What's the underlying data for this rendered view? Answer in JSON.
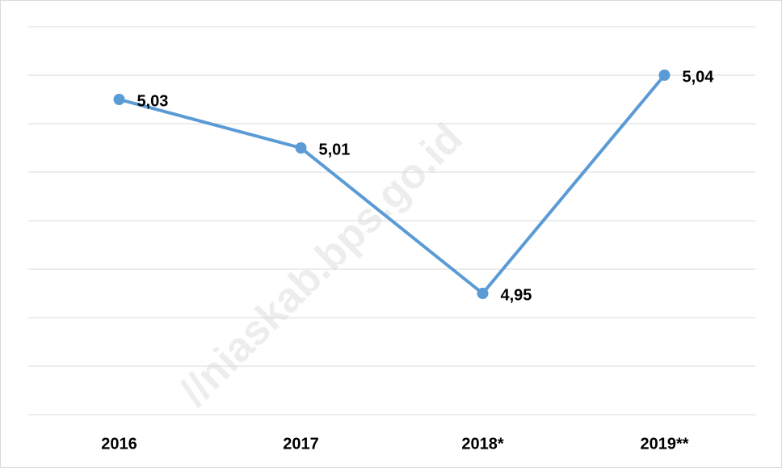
{
  "chart_data": {
    "type": "line",
    "categories": [
      "2016",
      "2017",
      "2018*",
      "2019**"
    ],
    "series": [
      {
        "color": "#5b9bd5",
        "values": [
          5.03,
          5.01,
          4.95,
          5.04
        ],
        "value_labels": [
          "5,03",
          "5,01",
          "4,95",
          "5,04"
        ]
      }
    ],
    "ylim": [
      4.9,
      5.06
    ],
    "yticks": [
      4.9,
      4.92,
      4.94,
      4.96,
      4.98,
      5.0,
      5.02,
      5.04,
      5.06
    ],
    "grid": true
  },
  "watermark": "//niaskab.bps.go.id"
}
